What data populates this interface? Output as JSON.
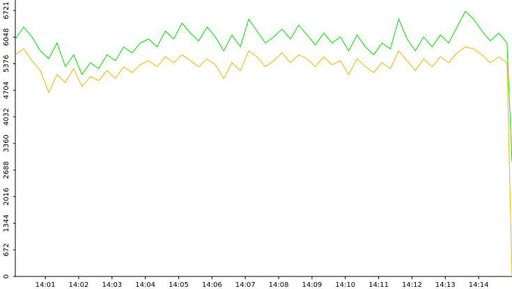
{
  "chart_data": {
    "type": "line",
    "x": [
      0.1,
      0.35,
      0.6,
      0.85,
      1.1,
      1.35,
      1.6,
      1.85,
      2.1,
      2.35,
      2.6,
      2.85,
      3.1,
      3.35,
      3.6,
      3.85,
      4.1,
      4.35,
      4.6,
      4.85,
      5.1,
      5.35,
      5.6,
      5.85,
      6.1,
      6.35,
      6.6,
      6.85,
      7.1,
      7.35,
      7.6,
      7.85,
      8.1,
      8.35,
      8.6,
      8.85,
      9.1,
      9.35,
      9.6,
      9.85,
      10.1,
      10.35,
      10.6,
      10.85,
      11.1,
      11.35,
      11.6,
      11.85,
      12.1,
      12.35,
      12.6,
      12.85,
      13.1,
      13.35,
      13.6,
      13.85,
      14.1,
      14.35,
      14.6,
      14.85,
      15.0
    ],
    "series": [
      {
        "color": "#00e000",
        "values": [
          6000,
          6300,
          6050,
          5700,
          5500,
          5900,
          5300,
          5600,
          5100,
          5400,
          5250,
          5600,
          5450,
          5800,
          5650,
          5900,
          6000,
          5800,
          6200,
          6000,
          6400,
          6150,
          5950,
          6300,
          6050,
          5700,
          6100,
          5800,
          6500,
          6200,
          5900,
          6050,
          6250,
          6000,
          6350,
          6100,
          5850,
          6150,
          5900,
          6050,
          5700,
          6100,
          5800,
          5600,
          5900,
          5750,
          6500,
          6000,
          5700,
          6050,
          5800,
          6100,
          5900,
          6300,
          6700,
          6500,
          6200,
          5950,
          6150,
          5900,
          2900
        ]
      },
      {
        "color": "#f0b400",
        "values": [
          5600,
          5750,
          5450,
          5200,
          4650,
          5100,
          4900,
          5250,
          4800,
          5050,
          4950,
          5200,
          5000,
          5300,
          5150,
          5350,
          5450,
          5300,
          5550,
          5400,
          5600,
          5450,
          5300,
          5500,
          5350,
          5000,
          5400,
          5200,
          5700,
          5550,
          5300,
          5450,
          5650,
          5400,
          5600,
          5500,
          5300,
          5550,
          5350,
          5450,
          5100,
          5500,
          5300,
          5150,
          5400,
          5250,
          5700,
          5450,
          5200,
          5500,
          5300,
          5550,
          5400,
          5650,
          5800,
          5750,
          5600,
          5400,
          5550,
          5400,
          0
        ]
      }
    ],
    "xlim": [
      0.1,
      15.0
    ],
    "xticks": [
      {
        "value": 1,
        "label": "14:01"
      },
      {
        "value": 2,
        "label": "14:02"
      },
      {
        "value": 3,
        "label": "14:03"
      },
      {
        "value": 4,
        "label": "14:04"
      },
      {
        "value": 5,
        "label": "14:05"
      },
      {
        "value": 6,
        "label": "14:06"
      },
      {
        "value": 7,
        "label": "14:07"
      },
      {
        "value": 8,
        "label": "14:08"
      },
      {
        "value": 9,
        "label": "14:09"
      },
      {
        "value": 10,
        "label": "14:10"
      },
      {
        "value": 11,
        "label": "14:11"
      },
      {
        "value": 12,
        "label": "14:12"
      },
      {
        "value": 13,
        "label": "14:13"
      },
      {
        "value": 14,
        "label": "14:14"
      }
    ],
    "ylim": [
      0,
      6721
    ],
    "yticks": [
      0,
      672,
      1344,
      2016,
      2688,
      3360,
      4032,
      4704,
      5376,
      6048,
      6721
    ]
  }
}
